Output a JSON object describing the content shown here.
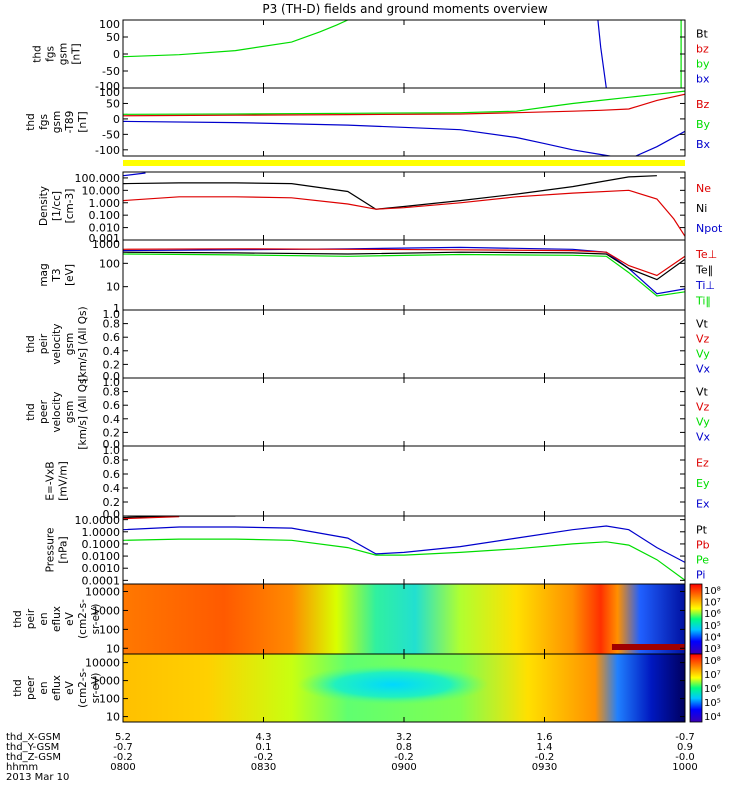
{
  "title": "P3 (TH-D) fields and ground moments overview",
  "colors": {
    "black": "#000000",
    "red": "#dd0000",
    "green": "#00dd00",
    "blue": "#0000cc",
    "yellow": "#ffff00",
    "frame": "#000000"
  },
  "chart_data": {
    "type": "line",
    "x_tick_labels": [
      "0800",
      "0830",
      "0900",
      "0930",
      "1000"
    ],
    "x_time_range": [
      "0800",
      "1000"
    ],
    "panels": [
      {
        "id": "fgs",
        "ylabel_lines": [
          "thd",
          "fgs",
          "gsm",
          "[nT]"
        ],
        "scale": "linear",
        "ylim": [
          -100,
          100
        ],
        "ticks": [
          "100",
          "50",
          "0",
          "-50",
          "-100"
        ],
        "legend": [
          {
            "label": "Bt",
            "color": "#000000"
          },
          {
            "label": "bz",
            "color": "#dd0000"
          },
          {
            "label": "by",
            "color": "#00dd00"
          },
          {
            "label": "bx",
            "color": "#0000cc"
          }
        ],
        "series": [
          {
            "color": "#00dd00",
            "x": [
              0.0,
              0.1,
              0.2,
              0.3,
              0.35,
              0.38,
              0.4
            ],
            "y": [
              -8,
              -2,
              10,
              35,
              65,
              85,
              100
            ]
          },
          {
            "color": "#0000cc",
            "x": [
              0.845,
              0.85,
              0.86
            ],
            "y": [
              100,
              20,
              -100
            ]
          },
          {
            "color": "#00dd00",
            "x": [
              0.993,
              0.993
            ],
            "y": [
              100,
              -100
            ]
          }
        ]
      },
      {
        "id": "fgs_gse",
        "ylabel_lines": [
          "thd",
          "fgs",
          "gsm",
          "-T89",
          "[nT]"
        ],
        "scale": "linear",
        "ylim": [
          -120,
          100
        ],
        "ticks": [
          "100",
          "50",
          "0",
          "-50",
          "-100"
        ],
        "legend": [
          {
            "label": "Bz",
            "color": "#dd0000"
          },
          {
            "label": "By",
            "color": "#00dd00"
          },
          {
            "label": "Bx",
            "color": "#0000cc"
          }
        ],
        "series": [
          {
            "color": "#00dd00",
            "x": [
              0.0,
              0.2,
              0.4,
              0.6,
              0.7,
              0.76,
              0.8,
              0.85,
              0.9,
              0.95,
              1.0
            ],
            "y": [
              15,
              16,
              18,
              20,
              25,
              40,
              50,
              60,
              70,
              80,
              90
            ]
          },
          {
            "color": "#dd0000",
            "x": [
              0.0,
              0.2,
              0.4,
              0.6,
              0.7,
              0.8,
              0.85,
              0.9,
              0.95,
              1.0
            ],
            "y": [
              10,
              12,
              14,
              16,
              20,
              25,
              28,
              32,
              60,
              80
            ]
          },
          {
            "color": "#0000cc",
            "x": [
              0.0,
              0.2,
              0.4,
              0.6,
              0.7,
              0.75,
              0.8,
              0.85,
              0.9,
              0.95,
              1.0
            ],
            "y": [
              -8,
              -12,
              -20,
              -35,
              -60,
              -80,
              -100,
              -115,
              -130,
              -90,
              -40
            ]
          }
        ]
      },
      {
        "id": "density",
        "ylabel_lines": [
          "Density",
          "[1/cc]",
          "[cm-3]"
        ],
        "scale": "log",
        "ylim": [
          0.001,
          300
        ],
        "ticks": [
          "100.000",
          "10.000",
          "1.000",
          "0.100",
          "0.010",
          "0.001"
        ],
        "legend": [
          {
            "label": "Ne",
            "color": "#dd0000"
          },
          {
            "label": "Ni",
            "color": "#000000"
          },
          {
            "label": "Npot",
            "color": "#0000cc"
          }
        ],
        "series": [
          {
            "color": "#000000",
            "x": [
              0.0,
              0.1,
              0.2,
              0.3,
              0.4,
              0.45,
              0.5,
              0.6,
              0.7,
              0.8,
              0.9,
              0.95
            ],
            "y": [
              35,
              40,
              40,
              35,
              8,
              0.3,
              0.5,
              1.5,
              5,
              20,
              120,
              150
            ]
          },
          {
            "color": "#dd0000",
            "x": [
              0.0,
              0.1,
              0.2,
              0.3,
              0.4,
              0.45,
              0.5,
              0.6,
              0.7,
              0.8,
              0.9,
              0.95,
              0.98,
              1.0
            ],
            "y": [
              1.5,
              3,
              3,
              2.5,
              0.8,
              0.3,
              0.4,
              1,
              3,
              6,
              10,
              2,
              0.05,
              0.002
            ]
          },
          {
            "color": "#0000cc",
            "x": [
              0.0,
              0.04
            ],
            "y": [
              150,
              250
            ]
          }
        ]
      },
      {
        "id": "temperature",
        "ylabel_lines": [
          "mag",
          "T3",
          "[eV]"
        ],
        "scale": "log",
        "ylim": [
          1,
          1000
        ],
        "ticks": [
          "1000",
          "100",
          "10",
          "1"
        ],
        "legend": [
          {
            "label": "Te⊥",
            "color": "#dd0000"
          },
          {
            "label": "Te‖",
            "color": "#000000"
          },
          {
            "label": "Ti⊥",
            "color": "#0000cc"
          },
          {
            "label": "Ti‖",
            "color": "#00dd00"
          }
        ],
        "series": [
          {
            "color": "#0000cc",
            "x": [
              0.0,
              0.2,
              0.4,
              0.6,
              0.8,
              0.86,
              0.9,
              0.95,
              1.0
            ],
            "y": [
              350,
              380,
              420,
              480,
              400,
              300,
              60,
              5,
              8
            ]
          },
          {
            "color": "#dd0000",
            "x": [
              0.0,
              0.2,
              0.4,
              0.6,
              0.8,
              0.86,
              0.9,
              0.95,
              1.0
            ],
            "y": [
              400,
              420,
              400,
              380,
              350,
              300,
              80,
              30,
              200
            ]
          },
          {
            "color": "#000000",
            "x": [
              0.0,
              0.2,
              0.4,
              0.6,
              0.8,
              0.86,
              0.9,
              0.95,
              1.0
            ],
            "y": [
              300,
              280,
              250,
              300,
              280,
              250,
              60,
              20,
              150
            ]
          },
          {
            "color": "#00dd00",
            "x": [
              0.0,
              0.2,
              0.4,
              0.6,
              0.8,
              0.86,
              0.9,
              0.95,
              1.0
            ],
            "y": [
              250,
              230,
              200,
              240,
              220,
              200,
              40,
              4,
              6
            ]
          }
        ]
      },
      {
        "id": "peir_velocity",
        "ylabel_lines": [
          "thd",
          "peir",
          "velocity",
          "gsm",
          "[km/s] (All Qs)"
        ],
        "scale": "linear",
        "ylim": [
          0,
          1
        ],
        "ticks": [
          "1.0",
          "0.8",
          "0.6",
          "0.4",
          "0.2",
          "0.0"
        ],
        "legend": [
          {
            "label": "Vt",
            "color": "#000000"
          },
          {
            "label": "Vz",
            "color": "#dd0000"
          },
          {
            "label": "Vy",
            "color": "#00dd00"
          },
          {
            "label": "Vx",
            "color": "#0000cc"
          }
        ],
        "series": []
      },
      {
        "id": "peer_velocity",
        "ylabel_lines": [
          "thd",
          "peer",
          "velocity",
          "gsm",
          "[km/s] (All Qs)"
        ],
        "scale": "linear",
        "ylim": [
          0,
          1
        ],
        "ticks": [
          "1.0",
          "0.8",
          "0.6",
          "0.4",
          "0.2",
          "0.0"
        ],
        "legend": [
          {
            "label": "Vt",
            "color": "#000000"
          },
          {
            "label": "Vz",
            "color": "#dd0000"
          },
          {
            "label": "Vy",
            "color": "#00dd00"
          },
          {
            "label": "Vx",
            "color": "#0000cc"
          }
        ],
        "series": []
      },
      {
        "id": "efield",
        "ylabel_lines": [
          "E=-VxB",
          "[mV/m]"
        ],
        "scale": "linear",
        "ylim": [
          0,
          1
        ],
        "ticks": [
          "1.0",
          "0.8",
          "0.6",
          "0.4",
          "0.2",
          "0.0"
        ],
        "legend": [
          {
            "label": "Ez",
            "color": "#dd0000"
          },
          {
            "label": "Ey",
            "color": "#00dd00"
          },
          {
            "label": "Ex",
            "color": "#0000cc"
          }
        ],
        "series": []
      },
      {
        "id": "pressure",
        "ylabel_lines": [
          "Pressure",
          "[nPa]"
        ],
        "scale": "log",
        "ylim": [
          5e-05,
          20
        ],
        "ticks": [
          "10.0000",
          "1.0000",
          "0.1000",
          "0.0100",
          "0.0010",
          "0.0001"
        ],
        "legend": [
          {
            "label": "Pt",
            "color": "#000000"
          },
          {
            "label": "Pb",
            "color": "#dd0000"
          },
          {
            "label": "Pe",
            "color": "#00dd00"
          },
          {
            "label": "Pi",
            "color": "#0000cc"
          }
        ],
        "series": [
          {
            "color": "#0000cc",
            "x": [
              0.0,
              0.1,
              0.2,
              0.3,
              0.4,
              0.45,
              0.5,
              0.6,
              0.7,
              0.8,
              0.86,
              0.9,
              0.95,
              1.0
            ],
            "y": [
              1.5,
              2.5,
              2.5,
              2,
              0.3,
              0.015,
              0.02,
              0.06,
              0.3,
              1.5,
              3,
              1.5,
              0.05,
              0.003
            ]
          },
          {
            "color": "#00dd00",
            "x": [
              0.0,
              0.1,
              0.2,
              0.3,
              0.4,
              0.45,
              0.5,
              0.6,
              0.7,
              0.8,
              0.86,
              0.9,
              0.95,
              1.0
            ],
            "y": [
              0.2,
              0.25,
              0.25,
              0.2,
              0.05,
              0.012,
              0.012,
              0.02,
              0.04,
              0.1,
              0.15,
              0.08,
              0.005,
              0.0001
            ]
          },
          {
            "color": "#000000",
            "x": [
              0.0,
              0.1,
              0.2
            ],
            "y": [
              15,
              20,
              20
            ]
          },
          {
            "color": "#dd0000",
            "x": [
              0.0,
              0.1
            ],
            "y": [
              12,
              18
            ]
          }
        ]
      },
      {
        "id": "peir_eflux",
        "type": "heatmap",
        "ylabel_lines": [
          "thd",
          "peir",
          "en",
          "eflux",
          "eV",
          "(cm2-s-",
          "sr-eV)"
        ],
        "scale": "log",
        "ylim": [
          5,
          25000
        ],
        "ticks": [
          "10000",
          "1000",
          "100",
          "10"
        ],
        "colorbar_labels": [
          "10⁸",
          "10⁷",
          "10⁶",
          "10⁵",
          "10⁴",
          "10³"
        ]
      },
      {
        "id": "peer_eflux",
        "type": "heatmap",
        "ylabel_lines": [
          "thd",
          "peer",
          "en",
          "eflux",
          "eV",
          "(cm2-s-",
          "sr-eV)"
        ],
        "scale": "log",
        "ylim": [
          5,
          30000
        ],
        "ticks": [
          "10000",
          "1000",
          "100",
          "10"
        ],
        "colorbar_labels": [
          "10⁸",
          "10⁷",
          "10⁶",
          "10⁵",
          "10⁴"
        ]
      }
    ],
    "footer": {
      "rows": [
        {
          "label": "thd_X-GSM",
          "values": [
            "5.2",
            "4.3",
            "3.2",
            "1.6",
            "-0.7"
          ]
        },
        {
          "label": "thd_Y-GSM",
          "values": [
            "-0.7",
            "0.1",
            "0.8",
            "1.4",
            "0.9"
          ]
        },
        {
          "label": "thd_Z-GSM",
          "values": [
            "-0.2",
            "-0.2",
            "-0.2",
            "-0.2",
            "-0.0"
          ]
        },
        {
          "label": "hhmm",
          "values": [
            "0800",
            "0830",
            "0900",
            "0930",
            "1000"
          ]
        }
      ],
      "date": "2013 Mar 10"
    }
  }
}
